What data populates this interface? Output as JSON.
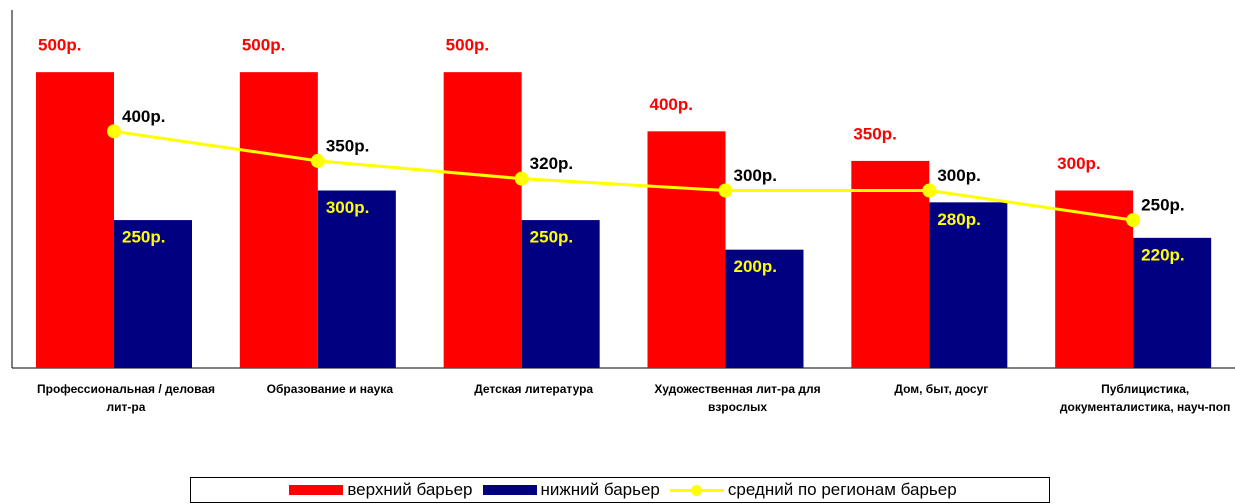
{
  "chart_data": {
    "type": "bar-line",
    "categories": [
      "Профессиональная / деловая лит-ра",
      "Образование и наука",
      "Детская литература",
      "Художественная лит-ра для взрослых",
      "Дом, быт, досуг",
      "Публицистика, документалистика, науч-поп"
    ],
    "ylim": [
      0,
      600
    ],
    "series": [
      {
        "name": "верхний барьер",
        "type": "bar",
        "color": "#ff0000",
        "values": [
          500,
          500,
          500,
          400,
          350,
          300
        ],
        "value_labels": [
          "500р.",
          "500р.",
          "500р.",
          "400р.",
          "350р.",
          "300р."
        ],
        "label_color": "#ff0000"
      },
      {
        "name": "нижний барьер",
        "type": "bar",
        "color": "#000080",
        "values": [
          250,
          300,
          250,
          200,
          280,
          220
        ],
        "value_labels": [
          "250р.",
          "300р.",
          "250р.",
          "200р.",
          "280р.",
          "220р."
        ],
        "label_color": "#ffff00"
      },
      {
        "name": "средний по регионам барьер",
        "type": "line",
        "color": "#ffff00",
        "values": [
          400,
          350,
          320,
          300,
          300,
          250
        ],
        "value_labels": [
          "400р.",
          "350р.",
          "320р.",
          "300р.",
          "300р.",
          "250р."
        ],
        "label_color": "#000000"
      }
    ]
  }
}
